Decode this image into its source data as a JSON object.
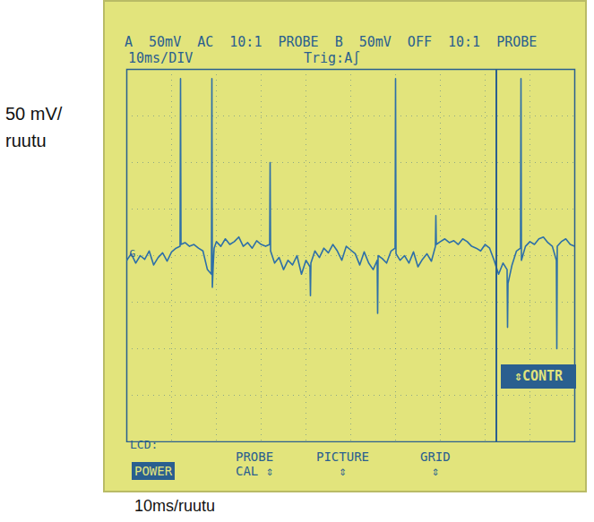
{
  "chart_data": {
    "type": "line",
    "xlabel": "10ms/ruutu",
    "ylabel": "50 mV/ ruutu",
    "x": [
      0,
      1,
      2,
      3,
      4,
      5,
      6,
      7,
      8,
      9,
      10,
      11,
      11.9,
      12,
      12.1,
      13,
      14,
      15,
      16,
      17,
      18,
      18.9,
      19,
      19.1,
      19.3,
      19.5,
      20,
      21,
      22,
      23,
      24,
      25,
      26,
      27,
      28,
      29,
      30,
      31,
      31.9,
      32,
      32.1,
      33,
      34,
      35,
      36,
      37,
      38,
      39,
      40,
      40.9,
      41,
      41.1,
      42,
      43,
      44,
      45,
      46,
      47,
      48,
      49,
      50,
      51,
      52,
      53,
      54,
      55,
      55.9,
      56,
      56.1,
      57,
      58,
      59,
      59.9,
      60,
      60.1,
      61,
      62,
      63,
      64,
      65,
      66,
      67,
      68,
      68.9,
      69,
      69.1,
      70,
      71,
      72,
      73,
      74,
      75,
      76,
      77,
      78,
      79,
      80,
      81,
      82,
      83,
      84,
      84.9,
      85,
      85.1,
      86,
      87,
      87.9,
      88,
      88.1,
      89,
      90,
      91,
      92,
      93,
      94,
      95,
      95.9,
      96,
      96.1,
      97,
      98,
      99,
      100
    ],
    "values": [
      -5,
      2,
      -8,
      0,
      -4,
      5,
      -10,
      -2,
      3,
      -6,
      4,
      8,
      10,
      190,
      12,
      14,
      10,
      12,
      8,
      5,
      -15,
      -20,
      190,
      -34,
      -10,
      8,
      15,
      10,
      18,
      12,
      15,
      20,
      10,
      14,
      8,
      16,
      12,
      10,
      12,
      100,
      5,
      -8,
      -2,
      -15,
      -5,
      -10,
      0,
      -20,
      -5,
      -12,
      -43,
      -8,
      5,
      -2,
      8,
      3,
      12,
      5,
      -5,
      10,
      6,
      2,
      -10,
      4,
      -8,
      -15,
      -5,
      -62,
      0,
      -3,
      -8,
      5,
      8,
      190,
      2,
      -5,
      0,
      -8,
      4,
      -12,
      -4,
      2,
      -6,
      10,
      43,
      12,
      15,
      18,
      14,
      16,
      12,
      18,
      15,
      10,
      8,
      5,
      12,
      8,
      -5,
      -20,
      -8,
      -15,
      -77,
      -30,
      -10,
      5,
      8,
      190,
      -5,
      10,
      15,
      12,
      18,
      20,
      14,
      10,
      -5,
      -100,
      10,
      15,
      18,
      12,
      10
    ],
    "color": "#2d6fa8",
    "xlim": [
      0,
      100
    ],
    "ylim": [
      -200,
      200
    ],
    "xticks": [
      0,
      10,
      20,
      30,
      40,
      50,
      60,
      70,
      80,
      90,
      100
    ],
    "yticks": [
      -200,
      -150,
      -100,
      -50,
      0,
      50,
      100,
      150,
      200
    ],
    "grid": true,
    "tick_labels": false,
    "annotations": [
      {
        "text": "G",
        "x": 0,
        "y": 0
      }
    ]
  },
  "screen": {
    "header": [
      "A 50mV AC 10:1 PROBE B 50mV OFF 10:1 PROBE",
      "10ms/DIV",
      "Trig:A∫"
    ],
    "lcd": "LCD:",
    "menu": [
      [
        "POWER"
      ],
      [
        "PROBE",
        "CAL ⇕"
      ],
      [
        "PICTURE",
        "⇕"
      ],
      [
        "GRID",
        "⇕"
      ]
    ],
    "side_button": "⇕CONTR"
  }
}
